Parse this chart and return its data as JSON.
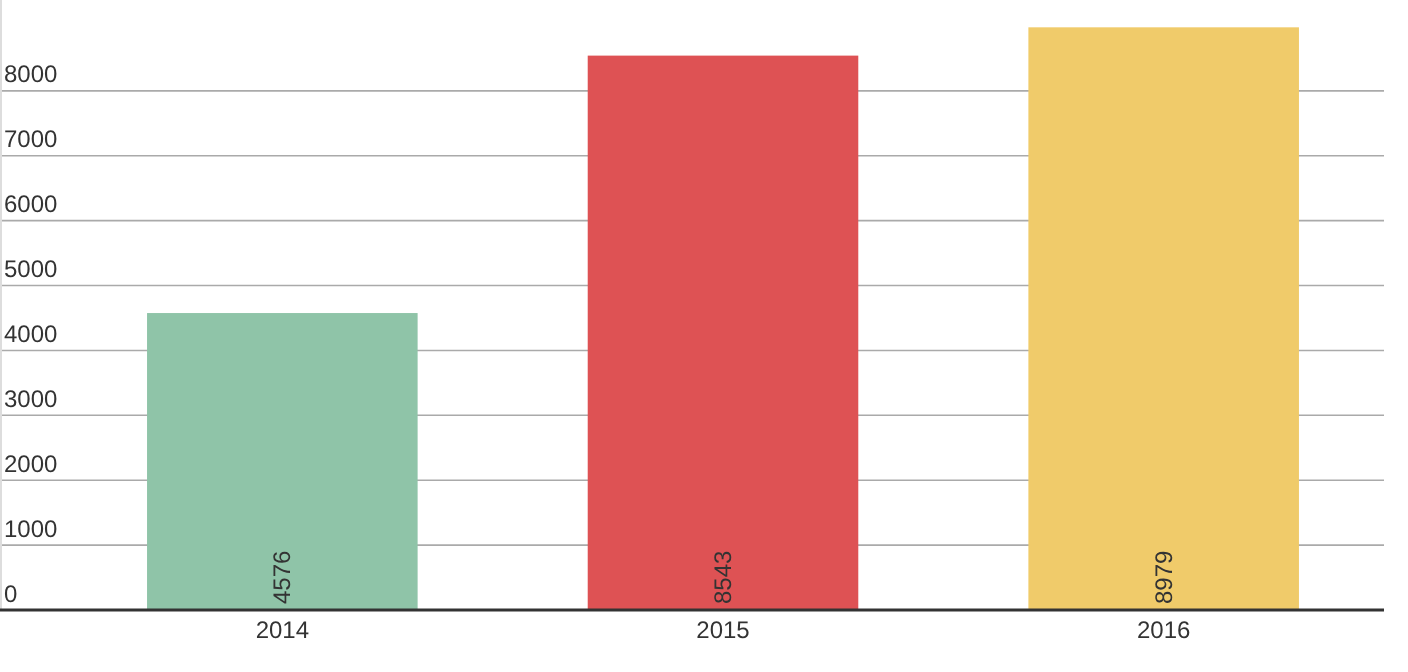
{
  "chart_data": {
    "type": "bar",
    "categories": [
      "2014",
      "2015",
      "2016"
    ],
    "values": [
      4576,
      8543,
      8979
    ],
    "colors": [
      "#8fc4a8",
      "#de5254",
      "#f0cb6a"
    ],
    "ylim": [
      0,
      9400
    ],
    "yticks": [
      0,
      1000,
      2000,
      3000,
      4000,
      5000,
      6000,
      7000,
      8000
    ],
    "grid": "y",
    "data_labels": true
  }
}
